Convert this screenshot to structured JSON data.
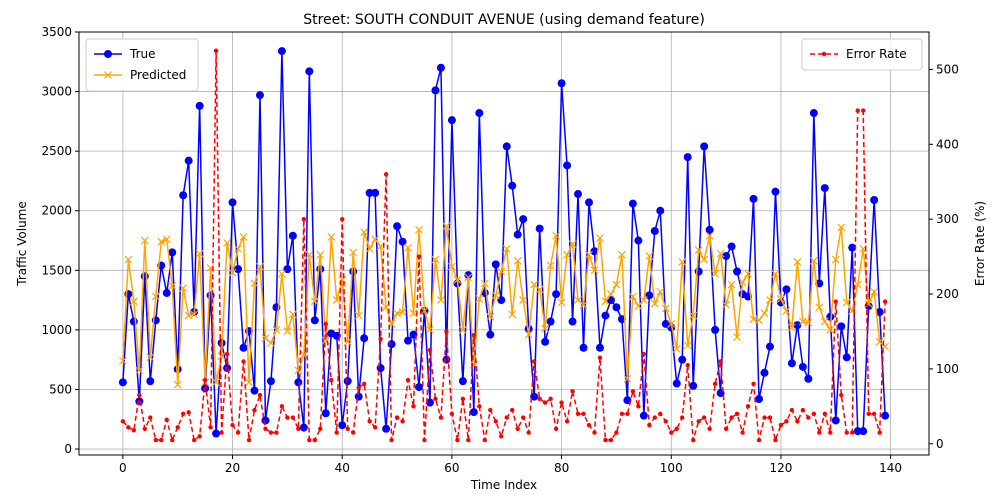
{
  "chart_data": {
    "type": "line",
    "title": "Street: SOUTH CONDUIT AVENUE (using demand feature)",
    "xlabel": "Time Index",
    "ylabel": "Traffic Volume",
    "y2label": "Error Rate (%)",
    "xlim": [
      -8,
      147
    ],
    "ylim": [
      -50,
      3500
    ],
    "y2lim": [
      -15,
      550
    ],
    "xticks": [
      0,
      20,
      40,
      60,
      80,
      100,
      120,
      140
    ],
    "yticks": [
      0,
      500,
      1000,
      1500,
      2000,
      2500,
      3000,
      3500
    ],
    "y2ticks": [
      0,
      100,
      200,
      300,
      400,
      500
    ],
    "grid": true,
    "legend_left": "upper-left",
    "legend_right": "upper-right",
    "series": [
      {
        "name": "True",
        "axis": "left",
        "color": "#0000ff",
        "marker": "circle",
        "values": [
          560,
          1300,
          1070,
          400,
          1450,
          570,
          1080,
          1540,
          1310,
          1650,
          670,
          2130,
          2420,
          1150,
          2880,
          510,
          1290,
          130,
          890,
          680,
          2070,
          1510,
          850,
          990,
          490,
          2970,
          240,
          570,
          1190,
          3340,
          1510,
          1790,
          560,
          180,
          3170,
          1080,
          1510,
          300,
          970,
          950,
          200,
          570,
          1490,
          440,
          930,
          2150,
          2150,
          680,
          170,
          880,
          1870,
          1740,
          910,
          960,
          520,
          1160,
          390,
          3010,
          3200,
          750,
          2760,
          1390,
          570,
          1460,
          310,
          2820,
          1310,
          960,
          1550,
          1250,
          2540,
          2210,
          1800,
          1930,
          1010,
          440,
          1850,
          900,
          1070,
          1300,
          3070,
          2380,
          1070,
          2140,
          850,
          2070,
          1660,
          850,
          1120,
          1250,
          1190,
          1090,
          410,
          2060,
          1750,
          280,
          1290,
          1830,
          2000,
          1050,
          1020,
          550,
          750,
          2450,
          530,
          1490,
          2540,
          1840,
          1000,
          470,
          1620,
          1700,
          1490,
          1300,
          1280,
          2100,
          420,
          640,
          860,
          2160,
          1230,
          1340,
          720,
          1040,
          690,
          590,
          2820,
          1390,
          2190,
          1110,
          240,
          1030,
          770,
          1690,
          150,
          150,
          1200,
          2090,
          1150,
          280
        ]
      },
      {
        "name": "Predicted",
        "axis": "left",
        "color": "#ffa500",
        "marker": "x",
        "values": [
          740,
          1590,
          1240,
          660,
          1750,
          770,
          1280,
          1740,
          1760,
          1370,
          540,
          1350,
          1120,
          1130,
          1640,
          560,
          1520,
          560,
          780,
          1730,
          1480,
          1680,
          1780,
          560,
          1390,
          1530,
          930,
          890,
          1000,
          1470,
          990,
          1130,
          660,
          790,
          1630,
          1240,
          1630,
          910,
          1780,
          1250,
          1420,
          900,
          1650,
          1120,
          1820,
          1680,
          1760,
          1700,
          1190,
          1050,
          1140,
          1150,
          1690,
          1140,
          1840,
          1160,
          1000,
          1590,
          1250,
          1870,
          1530,
          1420,
          1000,
          1440,
          710,
          1260,
          1390,
          1110,
          1290,
          1490,
          1680,
          1130,
          1580,
          1250,
          960,
          1380,
          1340,
          1010,
          1540,
          1790,
          1230,
          1630,
          1720,
          1250,
          1210,
          1630,
          1500,
          1770,
          1240,
          1300,
          1380,
          1630,
          590,
          1280,
          1200,
          1250,
          1620,
          1220,
          1320,
          1180,
          1050,
          840,
          1570,
          870,
          1120,
          1670,
          1590,
          1790,
          1470,
          1640,
          1210,
          1380,
          940,
          1400,
          1470,
          1090,
          1080,
          1140,
          1250,
          1470,
          1260,
          1160,
          1020,
          1570,
          1070,
          1060,
          1580,
          1190,
          1070,
          1000,
          1590,
          1860,
          1230,
          1160,
          1380,
          1680,
          1220,
          1320,
          900,
          860
        ]
      },
      {
        "name": "Error Rate",
        "axis": "right",
        "color": "#ff0000",
        "marker": "dot",
        "linestyle": "dashed",
        "values": [
          30,
          22,
          18,
          65,
          20,
          35,
          5,
          5,
          32,
          5,
          22,
          40,
          42,
          5,
          10,
          85,
          22,
          525,
          15,
          120,
          25,
          15,
          110,
          5,
          45,
          65,
          20,
          15,
          15,
          50,
          35,
          35,
          20,
          300,
          5,
          5,
          20,
          160,
          85,
          15,
          300,
          20,
          15,
          75,
          80,
          30,
          22,
          140,
          360,
          5,
          35,
          30,
          85,
          50,
          250,
          5,
          125,
          60,
          35,
          150,
          40,
          5,
          60,
          5,
          145,
          50,
          5,
          45,
          30,
          10,
          35,
          45,
          20,
          35,
          15,
          110,
          60,
          55,
          60,
          20,
          55,
          30,
          70,
          40,
          40,
          25,
          15,
          115,
          5,
          5,
          15,
          40,
          40,
          70,
          50,
          120,
          25,
          35,
          40,
          30,
          15,
          20,
          35,
          105,
          5,
          30,
          35,
          20,
          80,
          110,
          20,
          35,
          40,
          15,
          50,
          80,
          5,
          35,
          35,
          5,
          25,
          30,
          45,
          30,
          45,
          35,
          40,
          15,
          40,
          15,
          190,
          65,
          15,
          15,
          445,
          445,
          40,
          40,
          15,
          190
        ]
      }
    ]
  }
}
